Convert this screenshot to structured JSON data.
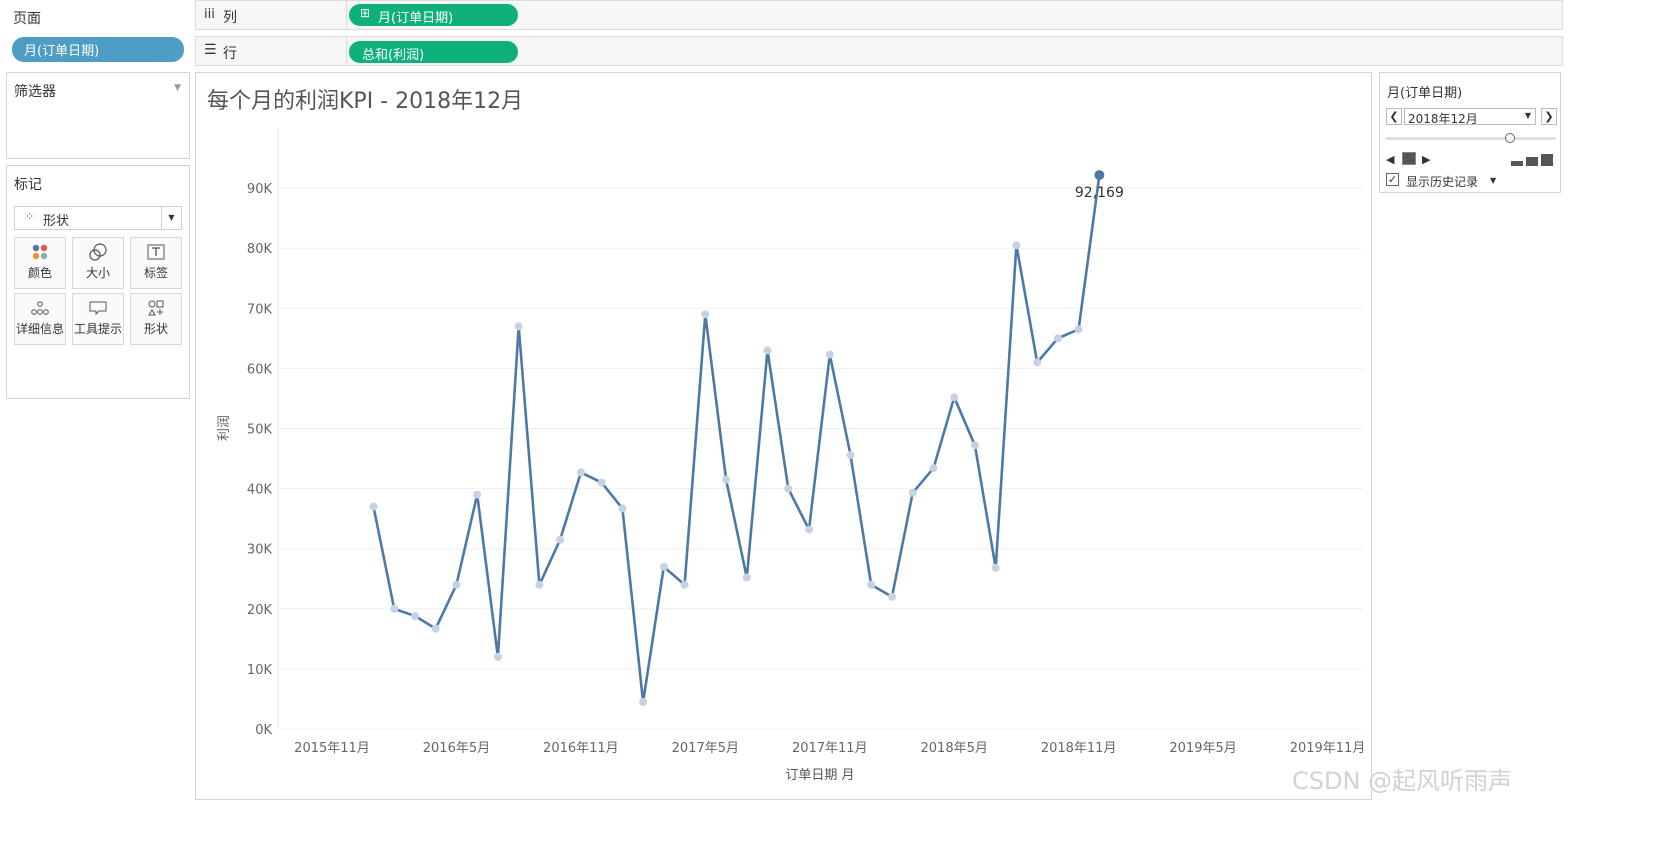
{
  "left_panel": {
    "pages_title": "页面",
    "pages_pill": "月(订单日期)",
    "filters_title": "筛选器",
    "marks_title": "标记",
    "mark_type": "形状",
    "mark_buttons": [
      "颜色",
      "大小",
      "标签",
      "详细信息",
      "工具提示",
      "形状"
    ]
  },
  "shelves": {
    "columns_label": "列",
    "columns_pill": "月(订单日期)",
    "rows_label": "行",
    "rows_pill": "总和(利润)"
  },
  "page_control": {
    "title": "月(订单日期)",
    "current": "2018年12月",
    "show_history": "显示历史记录",
    "show_history_checked": true
  },
  "watermark": "CSDN @起风听雨声",
  "colors": {
    "line": "#4e79a7",
    "pill_green": "#0fb07c",
    "pill_blue": "#4d9dc4"
  },
  "chart_data": {
    "type": "line",
    "title": "每个月的利润KPI - 2018年12月",
    "xlabel": "订单日期 月",
    "ylabel": "利润",
    "y_ticks": [
      "0K",
      "10K",
      "20K",
      "30K",
      "40K",
      "50K",
      "60K",
      "70K",
      "80K",
      "90K"
    ],
    "ylim": [
      0,
      100000
    ],
    "x_ticks": [
      "2015年11月",
      "2016年5月",
      "2016年11月",
      "2017年5月",
      "2017年11月",
      "2018年5月",
      "2018年11月",
      "2019年5月",
      "2019年11月"
    ],
    "x": [
      "2016年1月",
      "2016年2月",
      "2016年3月",
      "2016年4月",
      "2016年5月",
      "2016年6月",
      "2016年7月",
      "2016年8月",
      "2016年9月",
      "2016年10月",
      "2016年11月",
      "2016年12月",
      "2017年1月",
      "2017年2月",
      "2017年3月",
      "2017年4月",
      "2017年5月",
      "2017年6月",
      "2017年7月",
      "2017年8月",
      "2017年9月",
      "2017年10月",
      "2017年11月",
      "2017年12月",
      "2018年1月",
      "2018年2月",
      "2018年3月",
      "2018年4月",
      "2018年5月",
      "2018年6月",
      "2018年7月",
      "2018年8月",
      "2018年9月",
      "2018年10月",
      "2018年11月",
      "2018年12月"
    ],
    "values": [
      37000,
      20000,
      18800,
      16700,
      24000,
      39000,
      12000,
      67000,
      24000,
      31500,
      42700,
      41000,
      36700,
      4500,
      27000,
      24000,
      69000,
      41500,
      25200,
      63000,
      40000,
      33200,
      62300,
      45600,
      24000,
      22000,
      39300,
      43400,
      55200,
      47200,
      26800,
      80500,
      61000,
      65000,
      66500,
      92169
    ],
    "highlight_label": "92,169",
    "grid": true
  }
}
